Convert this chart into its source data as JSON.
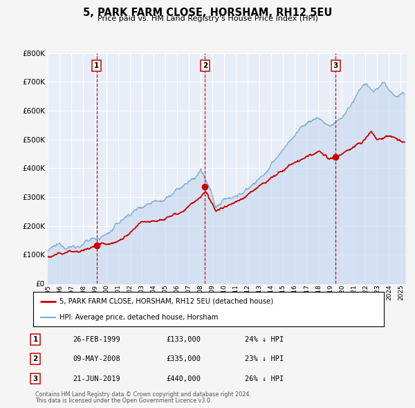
{
  "title": "5, PARK FARM CLOSE, HORSHAM, RH12 5EU",
  "subtitle": "Price paid vs. HM Land Registry's House Price Index (HPI)",
  "ylim": [
    0,
    800000
  ],
  "yticks": [
    0,
    100000,
    200000,
    300000,
    400000,
    500000,
    600000,
    700000,
    800000
  ],
  "xlim_start": 1995.0,
  "xlim_end": 2025.5,
  "bg_color": "#f5f5f5",
  "plot_bg_color": "#e8eef8",
  "grid_color": "#ffffff",
  "red_color": "#cc0000",
  "blue_color": "#7aaad0",
  "blue_fill_color": "#c5d8ee",
  "sale1_date": 1999.15,
  "sale1_price": 133000,
  "sale1_label": "26-FEB-1999",
  "sale1_amount": "£133,000",
  "sale1_hpi": "24% ↓ HPI",
  "sale2_date": 2008.36,
  "sale2_price": 335000,
  "sale2_label": "09-MAY-2008",
  "sale2_amount": "£335,000",
  "sale2_hpi": "23% ↓ HPI",
  "sale3_date": 2019.47,
  "sale3_price": 440000,
  "sale3_label": "21-JUN-2019",
  "sale3_amount": "£440,000",
  "sale3_hpi": "26% ↓ HPI",
  "legend_label_red": "5, PARK FARM CLOSE, HORSHAM, RH12 5EU (detached house)",
  "legend_label_blue": "HPI: Average price, detached house, Horsham",
  "footer1": "Contains HM Land Registry data © Crown copyright and database right 2024.",
  "footer2": "This data is licensed under the Open Government Licence v3.0."
}
